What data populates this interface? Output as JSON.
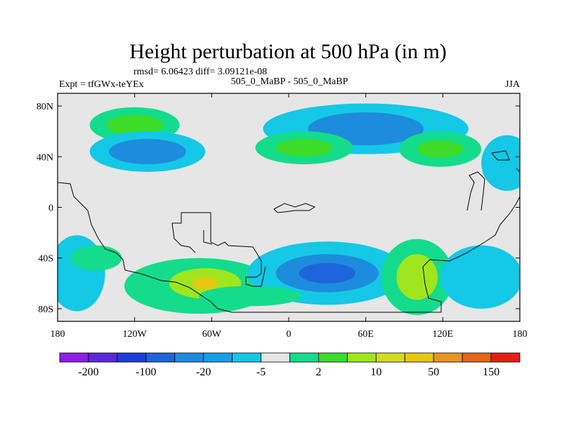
{
  "chart_data": {
    "type": "heatmap",
    "title": "Height perturbation at 500 hPa (in m)",
    "stats_line": "rmsd= 6.06423 diff= 3.09121e-08",
    "left_label": "Expt = tfGWx-teYEx",
    "center_label": "505_0_MaBP - 505_0_MaBP",
    "right_label": "JJA",
    "x_axis": {
      "range": [
        -180,
        180
      ],
      "ticks": [
        "180",
        "120W",
        "60W",
        "0",
        "60E",
        "120E",
        "180"
      ]
    },
    "y_axis": {
      "range": [
        -90,
        90
      ],
      "ticks": [
        "80N",
        "40N",
        "0",
        "40S",
        "80S"
      ]
    },
    "colorbar": {
      "colors": [
        "#8c1ee6",
        "#5a28dc",
        "#1e3cdc",
        "#1e64dc",
        "#1e8cdc",
        "#14a0e6",
        "#14c8e6",
        "#e6e6e6",
        "#14dc8c",
        "#3cdc28",
        "#a0e61e",
        "#d2dc1e",
        "#e6c814",
        "#e6961e",
        "#e66414",
        "#e61e14"
      ],
      "labels": [
        "-200",
        "-100",
        "-20",
        "-5",
        "2",
        "10",
        "50",
        "150"
      ]
    },
    "blobs": [
      {
        "lon": -120,
        "lat": 65,
        "level": 1,
        "rx": 35,
        "ry": 14
      },
      {
        "lon": -120,
        "lat": 65,
        "level": 2,
        "rx": 22,
        "ry": 8
      },
      {
        "lon": -110,
        "lat": 44,
        "level": -1,
        "rx": 45,
        "ry": 16
      },
      {
        "lon": -110,
        "lat": 44,
        "level": -3,
        "rx": 30,
        "ry": 10
      },
      {
        "lon": 60,
        "lat": 62,
        "level": -1,
        "rx": 80,
        "ry": 20
      },
      {
        "lon": 60,
        "lat": 62,
        "level": -3,
        "rx": 45,
        "ry": 13
      },
      {
        "lon": 12,
        "lat": 47,
        "level": 1,
        "rx": 38,
        "ry": 13
      },
      {
        "lon": 12,
        "lat": 47,
        "level": 2,
        "rx": 22,
        "ry": 7
      },
      {
        "lon": 118,
        "lat": 46,
        "level": 1,
        "rx": 32,
        "ry": 14
      },
      {
        "lon": 118,
        "lat": 46,
        "level": 2,
        "rx": 18,
        "ry": 7
      },
      {
        "lon": 170,
        "lat": 35,
        "level": -1,
        "rx": 20,
        "ry": 22
      },
      {
        "lon": -70,
        "lat": -62,
        "level": 1,
        "rx": 58,
        "ry": 22
      },
      {
        "lon": -65,
        "lat": -60,
        "level": 3,
        "rx": 28,
        "ry": 12
      },
      {
        "lon": -65,
        "lat": -60,
        "level": 5,
        "rx": 10,
        "ry": 5
      },
      {
        "lon": 30,
        "lat": -52,
        "level": -1,
        "rx": 62,
        "ry": 25
      },
      {
        "lon": 30,
        "lat": -52,
        "level": -3,
        "rx": 40,
        "ry": 15
      },
      {
        "lon": 30,
        "lat": -52,
        "level": -4,
        "rx": 22,
        "ry": 8
      },
      {
        "lon": 100,
        "lat": -55,
        "level": 1,
        "rx": 28,
        "ry": 30
      },
      {
        "lon": 100,
        "lat": -55,
        "level": 3,
        "rx": 16,
        "ry": 18
      },
      {
        "lon": -165,
        "lat": -52,
        "level": -1,
        "rx": 22,
        "ry": 30
      },
      {
        "lon": 150,
        "lat": -55,
        "level": -1,
        "rx": 32,
        "ry": 25
      },
      {
        "lon": -150,
        "lat": -40,
        "level": 1,
        "rx": 20,
        "ry": 10
      },
      {
        "lon": -30,
        "lat": -70,
        "level": 1,
        "rx": 40,
        "ry": 8
      }
    ]
  }
}
